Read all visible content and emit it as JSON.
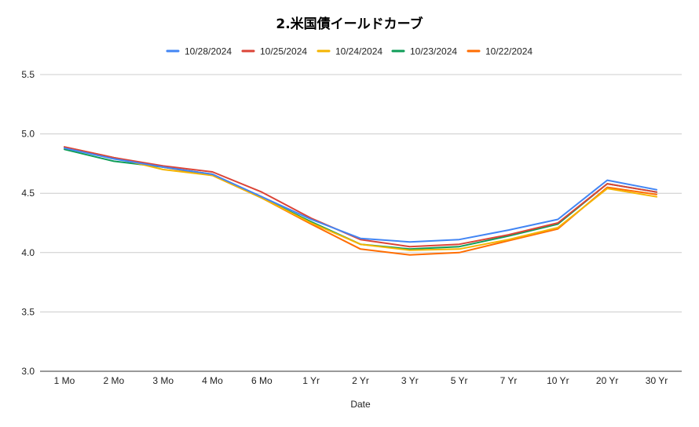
{
  "chart_data": {
    "type": "line",
    "title": "2.米国債イールドカーブ",
    "xlabel": "Date",
    "ylabel": "",
    "ylim": [
      3.0,
      5.5
    ],
    "yticks": [
      "3.0",
      "3.5",
      "4.0",
      "4.5",
      "5.0",
      "5.5"
    ],
    "grid": true,
    "legend_position": "top",
    "categories": [
      "1 Mo",
      "2 Mo",
      "3 Mo",
      "4 Mo",
      "6 Mo",
      "1 Yr",
      "2 Yr",
      "3 Yr",
      "5 Yr",
      "7 Yr",
      "10 Yr",
      "20 Yr",
      "30 Yr"
    ],
    "series": [
      {
        "name": "10/28/2024",
        "color": "#4285f4",
        "values": [
          4.88,
          4.79,
          4.72,
          4.66,
          4.47,
          4.28,
          4.12,
          4.09,
          4.11,
          4.19,
          4.28,
          4.61,
          4.53
        ]
      },
      {
        "name": "10/25/2024",
        "color": "#db4437",
        "values": [
          4.89,
          4.8,
          4.73,
          4.68,
          4.51,
          4.29,
          4.11,
          4.05,
          4.07,
          4.15,
          4.25,
          4.58,
          4.51
        ]
      },
      {
        "name": "10/24/2024",
        "color": "#f4b400",
        "values": [
          4.88,
          4.8,
          4.7,
          4.65,
          4.46,
          4.25,
          4.07,
          4.02,
          4.03,
          4.11,
          4.21,
          4.54,
          4.47
        ]
      },
      {
        "name": "10/23/2024",
        "color": "#0f9d58",
        "values": [
          4.87,
          4.77,
          4.72,
          4.66,
          4.46,
          4.26,
          4.07,
          4.03,
          4.05,
          4.14,
          4.24,
          4.58,
          4.51
        ]
      },
      {
        "name": "10/22/2024",
        "color": "#ff6d01",
        "values": [
          4.89,
          4.8,
          4.72,
          4.65,
          4.46,
          4.24,
          4.03,
          3.98,
          4.0,
          4.1,
          4.2,
          4.55,
          4.49
        ]
      }
    ]
  }
}
